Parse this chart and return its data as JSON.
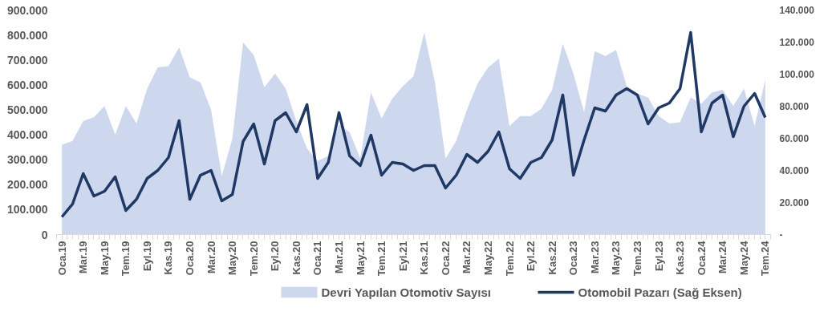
{
  "chart_data": {
    "type": "area",
    "categories": [
      "Oca.19",
      null,
      "Mar.19",
      null,
      "May.19",
      null,
      "Tem.19",
      null,
      "Eyl.19",
      null,
      "Kas.19",
      null,
      "Oca.20",
      null,
      "Mar.20",
      null,
      "May.20",
      null,
      "Tem.20",
      null,
      "Eyl.20",
      null,
      "Kas.20",
      null,
      "Oca.21",
      null,
      "Mar.21",
      null,
      "May.21",
      null,
      "Tem.21",
      null,
      "Eyl.21",
      null,
      "Kas.21",
      null,
      "Oca.22",
      null,
      "Mar.22",
      null,
      "May.22",
      null,
      "Tem.22",
      null,
      "Eyl.22",
      null,
      "Kas.22",
      null,
      "Oca.23",
      null,
      "Mar.23",
      null,
      "May.23",
      null,
      "Tem.23",
      null,
      "Eyl.23",
      null,
      "Kas.23",
      null,
      "Oca.24",
      null,
      "Mar.24",
      null,
      "May.24",
      null,
      "Tem.24"
    ],
    "series": [
      {
        "name": "Devri Yapılan Otomotiv Sayısı",
        "type": "area",
        "color": "#cdd8ee",
        "values": [
          360000,
          375000,
          455000,
          470000,
          515000,
          400000,
          515000,
          445000,
          585000,
          670000,
          675000,
          750000,
          630000,
          610000,
          500000,
          235000,
          385000,
          770000,
          720000,
          590000,
          645000,
          585000,
          455000,
          345000,
          295000,
          315000,
          440000,
          410000,
          305000,
          570000,
          465000,
          545000,
          595000,
          635000,
          810000,
          610000,
          305000,
          375000,
          500000,
          605000,
          670000,
          705000,
          435000,
          475000,
          475000,
          505000,
          580000,
          765000,
          645000,
          490000,
          735000,
          715000,
          740000,
          595000,
          565000,
          550000,
          475000,
          445000,
          450000,
          550000,
          525000,
          570000,
          580000,
          515000,
          585000,
          435000,
          620000
        ]
      },
      {
        "name": "Otomobil Pazarı (Sağ Eksen)",
        "type": "line",
        "axis": "y2",
        "color": "#1f3864",
        "values": [
          11000,
          19000,
          38000,
          24000,
          27000,
          36000,
          15000,
          22000,
          35000,
          40000,
          48000,
          71000,
          22000,
          37000,
          40000,
          21000,
          25000,
          58000,
          69000,
          44000,
          71000,
          76000,
          64000,
          81000,
          35000,
          45000,
          76000,
          49000,
          43000,
          62000,
          37000,
          45000,
          44000,
          40000,
          43000,
          43000,
          29000,
          37000,
          50000,
          45000,
          52000,
          64000,
          41000,
          35000,
          45000,
          48000,
          59000,
          87000,
          37000,
          59000,
          79000,
          77000,
          87000,
          91000,
          87000,
          69000,
          79000,
          82000,
          91000,
          126000,
          64000,
          82000,
          87000,
          61000,
          80000,
          88000,
          73000
        ]
      }
    ],
    "ylim": [
      0,
      900000
    ],
    "yticks": [
      0,
      {
        "value": 100000,
        "label": "100.000"
      },
      {
        "value": 200000,
        "label": "200.000"
      },
      {
        "value": 300000,
        "label": "300.000"
      },
      {
        "value": 400000,
        "label": "400.000"
      },
      {
        "value": 500000,
        "label": "500.000"
      },
      {
        "value": 600000,
        "label": "600.000"
      },
      {
        "value": 700000,
        "label": "700.000"
      },
      {
        "value": 800000,
        "label": "800.000"
      },
      {
        "value": 900000,
        "label": "900.000"
      }
    ],
    "y2lim": [
      0,
      140000
    ],
    "y2ticks": [
      {
        "value": 0,
        "label": "-"
      },
      {
        "value": 20000,
        "label": "20.000"
      },
      {
        "value": 40000,
        "label": "40.000"
      },
      {
        "value": 60000,
        "label": "60.000"
      },
      {
        "value": 80000,
        "label": "80.000"
      },
      {
        "value": 100000,
        "label": "100.000"
      },
      {
        "value": 120000,
        "label": "120.000"
      },
      {
        "value": 140000,
        "label": "140.000"
      }
    ],
    "grid": false,
    "legend": "bottom"
  }
}
